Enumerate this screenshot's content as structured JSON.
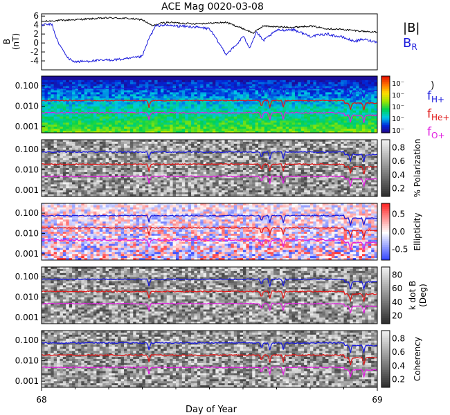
{
  "title": "ACE Mag 0020-03-08",
  "x_axis": {
    "label": "Day of Year",
    "range": [
      68,
      69
    ],
    "ticks": [
      "68",
      "69"
    ]
  },
  "legend_top": {
    "b_total": "|B|",
    "b_r_main": "B",
    "b_r_sub": "R"
  },
  "legend_freq": [
    {
      "main": "f",
      "sub": "H+",
      "color": "#1a1adc"
    },
    {
      "main": "f",
      "sub": "He+",
      "color": "#e01818"
    },
    {
      "main": "f",
      "sub": "O+",
      "color": "#e020e0"
    }
  ],
  "colorbar_power": {
    "labels": [
      "10⁻",
      "10⁻",
      "10⁻",
      "10⁻",
      "10⁻"
    ],
    "paren": ")"
  },
  "chart_data": [
    {
      "id": "mag",
      "type": "line",
      "ylabel_main": "B",
      "ylabel_unit": "(nT)",
      "ylim": [
        -6,
        6.5
      ],
      "yticks": [
        6,
        4,
        2,
        0,
        -2,
        -4
      ],
      "series": [
        {
          "name": "|B|",
          "color": "#000000",
          "x": [
            68.0,
            68.05,
            68.1,
            68.15,
            68.2,
            68.25,
            68.3,
            68.33,
            68.36,
            68.38,
            68.4,
            68.45,
            68.5,
            68.55,
            68.6,
            68.63,
            68.66,
            68.7,
            68.75,
            68.8,
            68.85,
            68.9,
            68.93,
            68.96,
            69.0
          ],
          "y": [
            4.8,
            5.0,
            5.2,
            5.4,
            5.6,
            5.5,
            5.2,
            3.8,
            4.5,
            4.6,
            4.5,
            4.3,
            4.4,
            4.6,
            3.2,
            2.2,
            3.8,
            3.6,
            3.5,
            3.8,
            3.2,
            3.0,
            2.8,
            2.6,
            2.4
          ]
        },
        {
          "name": "B_R",
          "color": "#1a1adc",
          "x": [
            68.0,
            68.03,
            68.05,
            68.08,
            68.1,
            68.15,
            68.2,
            68.25,
            68.3,
            68.32,
            68.34,
            68.36,
            68.4,
            68.45,
            68.5,
            68.55,
            68.58,
            68.6,
            68.62,
            68.64,
            68.66,
            68.7,
            68.75,
            68.8,
            68.85,
            68.9,
            68.93,
            68.96,
            69.0
          ],
          "y": [
            4.0,
            4.2,
            0.0,
            -3.5,
            -4.2,
            -4.0,
            -3.8,
            -3.6,
            -3.0,
            1.0,
            3.8,
            4.0,
            3.8,
            3.6,
            3.2,
            -2.5,
            -0.5,
            1.5,
            -1.0,
            2.5,
            0.5,
            2.8,
            3.0,
            1.5,
            2.0,
            1.2,
            0.4,
            0.8,
            0.2
          ]
        }
      ]
    },
    {
      "id": "power",
      "type": "heatmap",
      "ylabel": "",
      "yticks": [
        "0.100",
        "0.010",
        "0.001"
      ],
      "colorbar": "rainbow"
    },
    {
      "id": "polarization",
      "type": "heatmap",
      "ylabel": "",
      "yticks": [
        "0.100",
        "0.010",
        "0.001"
      ],
      "colorbar": "gray",
      "colorbar_label": "% Polarization",
      "colorbar_ticks": [
        "0.8",
        "0.6",
        "0.4",
        "0.2"
      ]
    },
    {
      "id": "ellipticity",
      "type": "heatmap",
      "ylabel": "",
      "yticks": [
        "0.100",
        "0.010",
        "0.001"
      ],
      "colorbar": "bwr",
      "colorbar_label": "Ellipticity",
      "colorbar_ticks": [
        "0.5",
        "0.0",
        "-0.5"
      ]
    },
    {
      "id": "kdotb",
      "type": "heatmap",
      "ylabel": "",
      "yticks": [
        "0.100",
        "0.010",
        "0.001"
      ],
      "colorbar": "gray",
      "colorbar_label_1": "k dot B",
      "colorbar_label_2": "(Deg)",
      "colorbar_ticks": [
        "80",
        "60",
        "40",
        "20"
      ]
    },
    {
      "id": "coherency",
      "type": "heatmap",
      "ylabel": "",
      "yticks": [
        "0.100",
        "0.010",
        "0.001"
      ],
      "colorbar": "gray",
      "colorbar_label": "Coherency",
      "colorbar_ticks": [
        "0.8",
        "0.6",
        "0.4",
        "0.2"
      ]
    }
  ],
  "gyro_lines": [
    {
      "name": "f_H+",
      "color": "#1a1adc",
      "level": 0.075
    },
    {
      "name": "f_He+",
      "color": "#e01818",
      "level": 0.019
    },
    {
      "name": "f_O+",
      "color": "#e020e0",
      "level": 0.0048
    }
  ]
}
